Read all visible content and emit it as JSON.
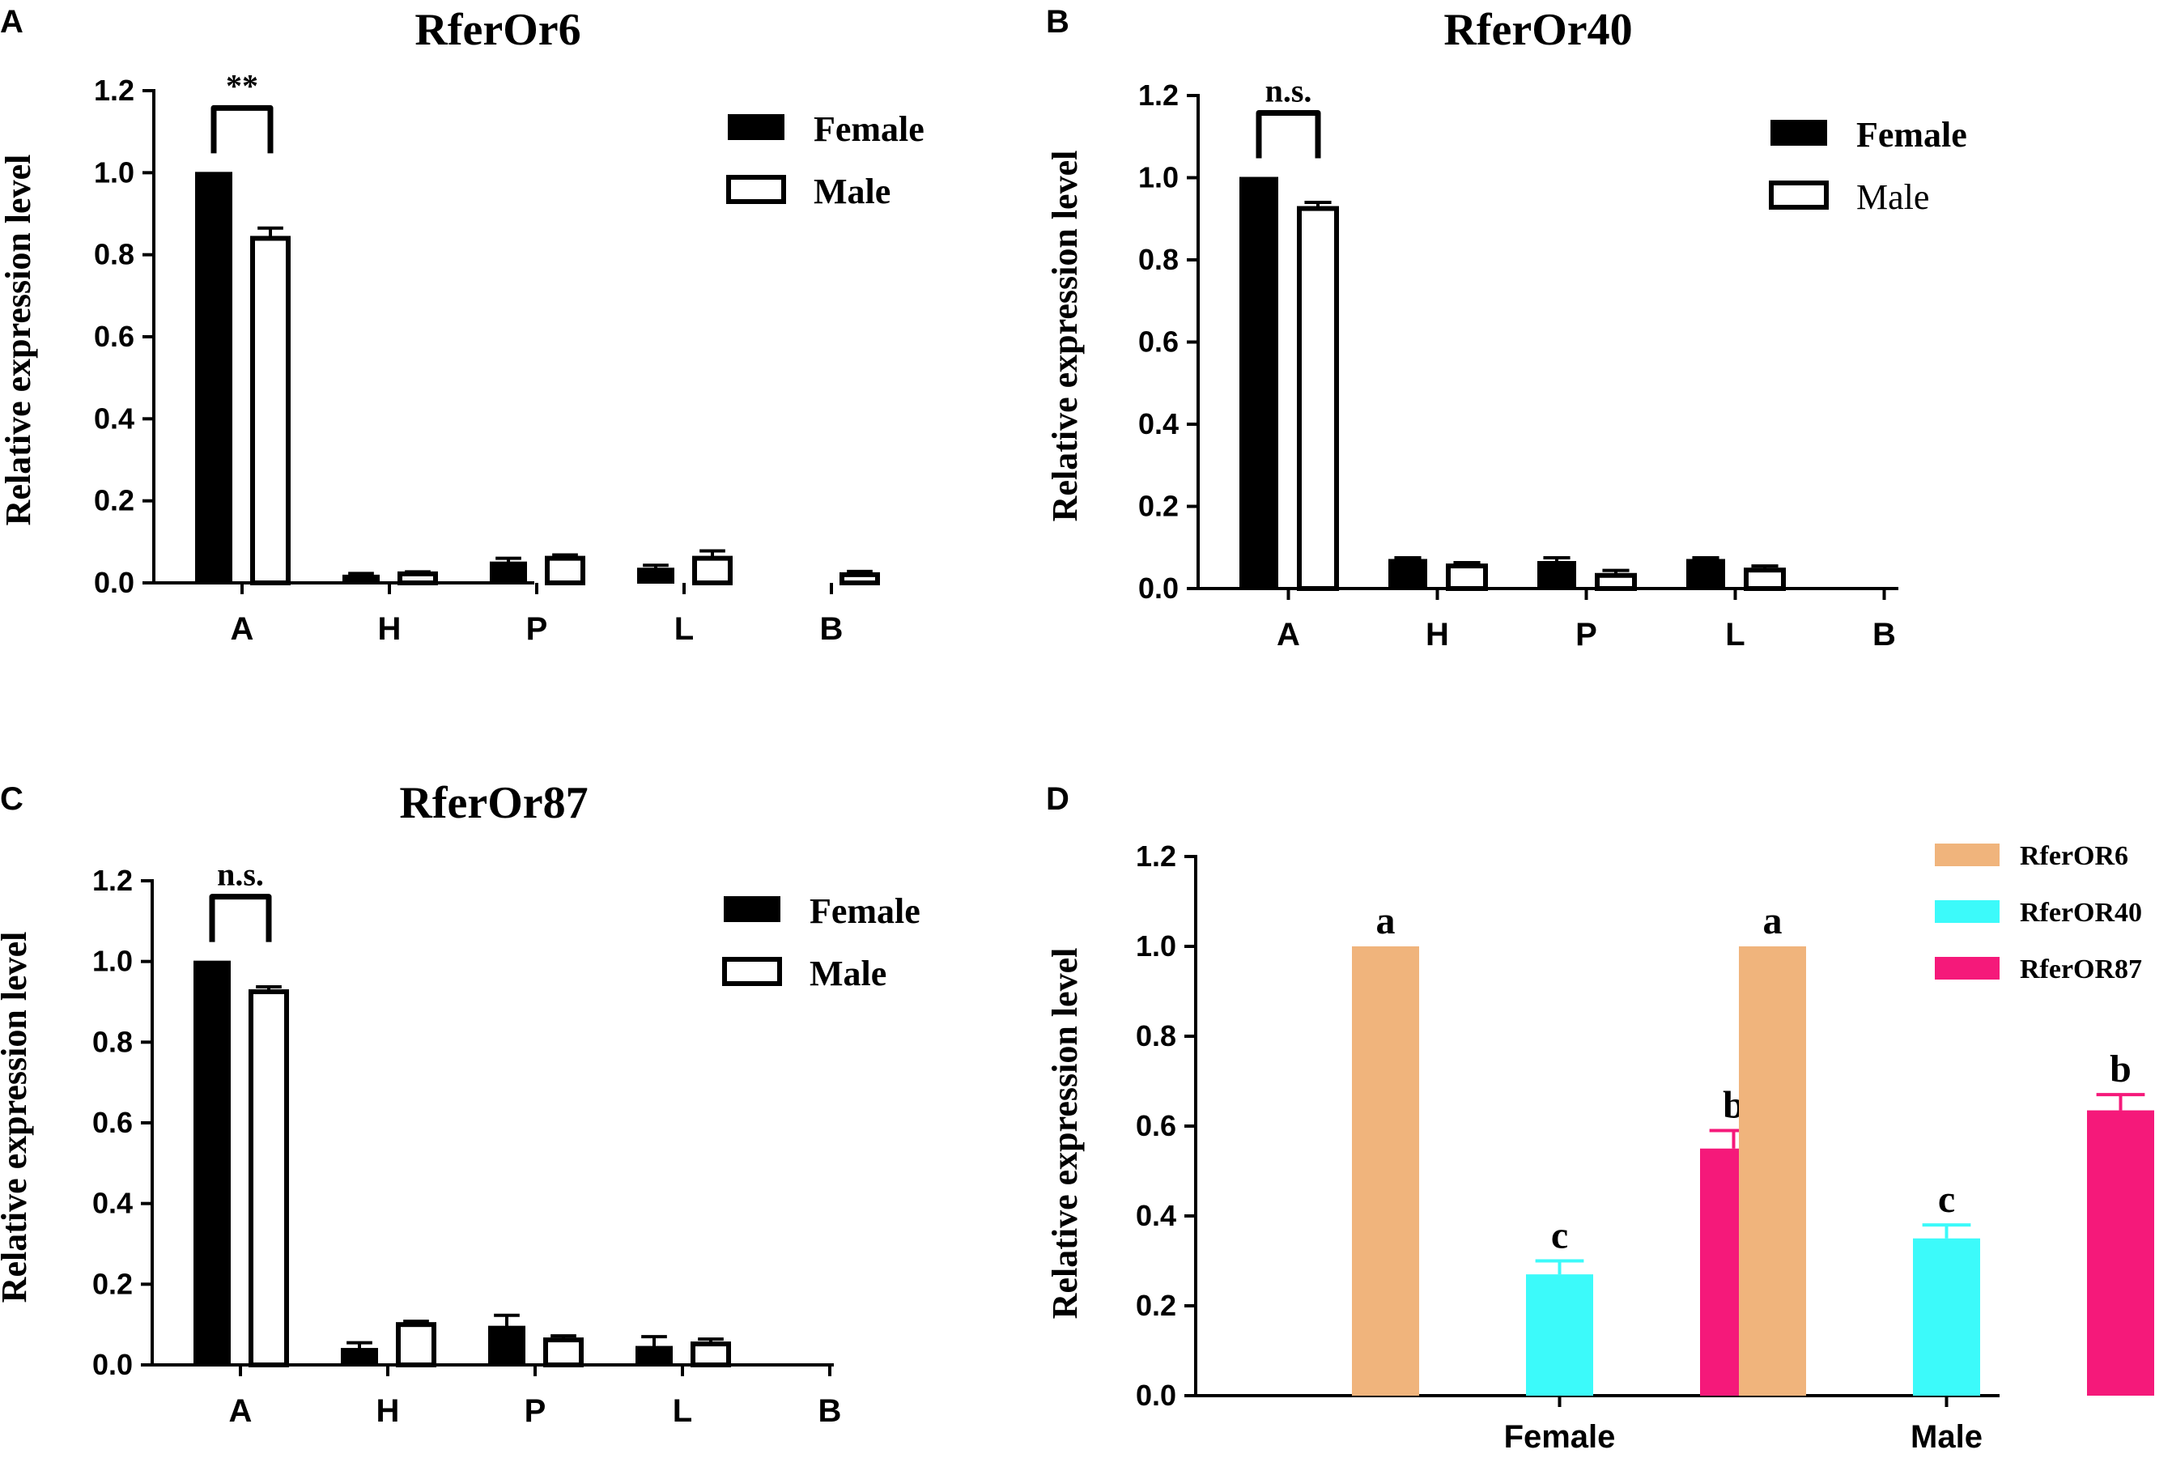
{
  "chart_data": [
    {
      "panel": "A",
      "type": "bar",
      "title": "RferOr6",
      "ylabel": "Relative expression level",
      "xlabel": "",
      "categories": [
        "A",
        "H",
        "P",
        "L",
        "B"
      ],
      "ylim": [
        0,
        1.2
      ],
      "yticks": [
        "0.0",
        "0.2",
        "0.4",
        "0.6",
        "0.8",
        "1.0",
        "1.2"
      ],
      "legend_position": "top-right",
      "series": [
        {
          "name": "Female",
          "fill": "#000000",
          "values": [
            1.0,
            0.018,
            0.05,
            0.035,
            0.0
          ],
          "errors": [
            0.0,
            0.005,
            0.01,
            0.008,
            0.0
          ]
        },
        {
          "name": "Male",
          "fill": "#ffffff",
          "values": [
            0.84,
            0.022,
            0.06,
            0.06,
            0.02
          ],
          "errors": [
            0.025,
            0.005,
            0.008,
            0.018,
            0.008
          ]
        }
      ],
      "significance": {
        "label": "**",
        "category": "A"
      }
    },
    {
      "panel": "B",
      "type": "bar",
      "title": "RferOr40",
      "ylabel": "Relative expression level",
      "xlabel": "",
      "categories": [
        "A",
        "H",
        "P",
        "L",
        "B"
      ],
      "ylim": [
        0,
        1.2
      ],
      "yticks": [
        "0.0",
        "0.2",
        "0.4",
        "0.6",
        "0.8",
        "1.0",
        "1.2"
      ],
      "legend_position": "top-right",
      "series": [
        {
          "name": "Female",
          "fill": "#000000",
          "values": [
            1.0,
            0.07,
            0.065,
            0.07,
            0.0
          ],
          "errors": [
            0.0,
            0.005,
            0.01,
            0.005,
            0.0
          ]
        },
        {
          "name": "Male",
          "fill": "#ffffff",
          "values": [
            0.925,
            0.055,
            0.032,
            0.045,
            0.0
          ],
          "errors": [
            0.015,
            0.008,
            0.012,
            0.01,
            0.0
          ]
        }
      ],
      "significance": {
        "label": "n.s.",
        "category": "A"
      }
    },
    {
      "panel": "C",
      "type": "bar",
      "title": "RferOr87",
      "ylabel": "Relative expression level",
      "xlabel": "",
      "categories": [
        "A",
        "H",
        "P",
        "L",
        "B"
      ],
      "ylim": [
        0,
        1.2
      ],
      "yticks": [
        "0.0",
        "0.2",
        "0.4",
        "0.6",
        "0.8",
        "1.0",
        "1.2"
      ],
      "legend_position": "top-right",
      "series": [
        {
          "name": "Female",
          "fill": "#000000",
          "values": [
            1.0,
            0.04,
            0.095,
            0.045,
            0.0
          ],
          "errors": [
            0.0,
            0.015,
            0.028,
            0.025,
            0.0
          ]
        },
        {
          "name": "Male",
          "fill": "#ffffff",
          "values": [
            0.925,
            0.1,
            0.062,
            0.052,
            0.0
          ],
          "errors": [
            0.012,
            0.008,
            0.01,
            0.012,
            0.0
          ]
        }
      ],
      "significance": {
        "label": "n.s.",
        "category": "A"
      }
    },
    {
      "panel": "D",
      "type": "bar",
      "title": "",
      "ylabel": "Relative expression level",
      "xlabel": "",
      "categories": [
        "Female",
        "Male"
      ],
      "ylim": [
        0,
        1.2
      ],
      "yticks": [
        "0.0",
        "0.2",
        "0.4",
        "0.6",
        "0.8",
        "1.0",
        "1.2"
      ],
      "legend_position": "top-right",
      "series": [
        {
          "name": "RferOR6",
          "fill": "#F0B47C",
          "values": [
            1.0,
            1.0
          ],
          "errors": [
            0.0,
            0.0
          ],
          "labels": [
            "a",
            "a"
          ]
        },
        {
          "name": "RferOR40",
          "fill": "#3CFAFA",
          "values": [
            0.27,
            0.35
          ],
          "errors": [
            0.03,
            0.03
          ],
          "labels": [
            "c",
            "c"
          ]
        },
        {
          "name": "RferOR87",
          "fill": "#F5197A",
          "values": [
            0.55,
            0.635
          ],
          "errors": [
            0.04,
            0.035
          ],
          "labels": [
            "b",
            "b"
          ]
        }
      ]
    }
  ]
}
